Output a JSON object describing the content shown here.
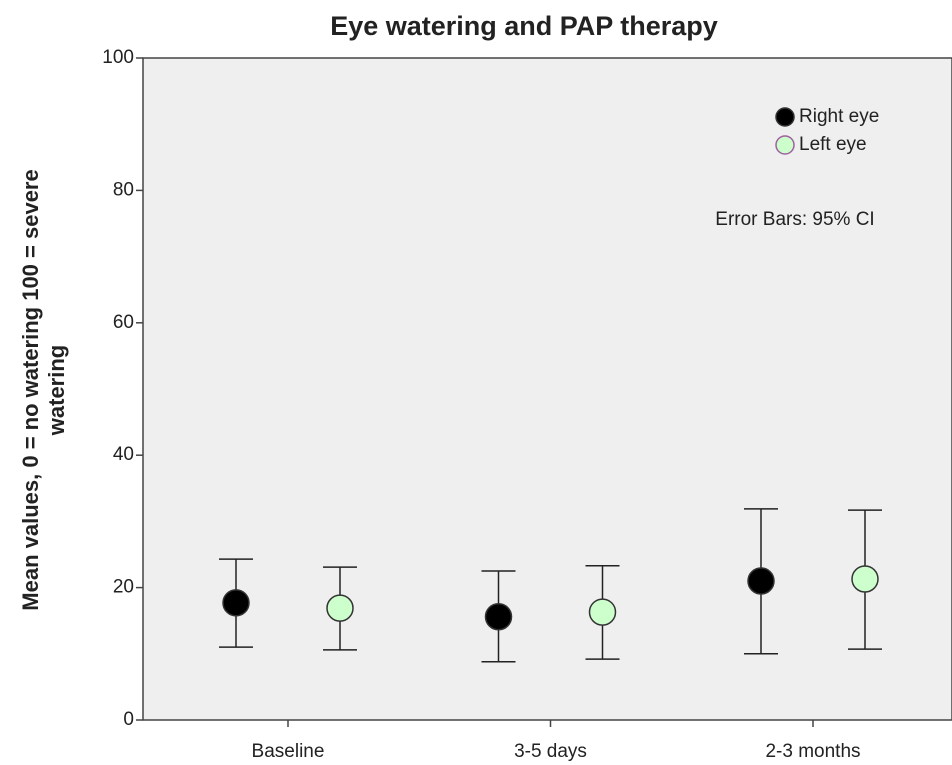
{
  "chart_data": {
    "type": "errorbar",
    "title": "Eye watering and PAP therapy",
    "y_label": [
      "Mean values, 0 = no watering 100 = severe",
      "watering"
    ],
    "annotation": "Error Bars: 95% CI",
    "categories": [
      "Baseline",
      "3-5 days",
      "2-3 months"
    ],
    "series": [
      {
        "name": "Right eye",
        "color": "#000000",
        "values": [
          17.7,
          15.6,
          21.0
        ],
        "ci_low": [
          11.0,
          8.8,
          10.0
        ],
        "ci_high": [
          24.3,
          22.5,
          31.9
        ]
      },
      {
        "name": "Left eye",
        "color": "#ccffcc",
        "values": [
          16.9,
          16.3,
          21.3
        ],
        "ci_low": [
          10.6,
          9.2,
          10.7
        ],
        "ci_high": [
          23.1,
          23.3,
          31.7
        ]
      }
    ],
    "ylim": [
      0,
      100
    ],
    "yticks": [
      0,
      20,
      40,
      60,
      80,
      100
    ],
    "legend": "upper right"
  }
}
